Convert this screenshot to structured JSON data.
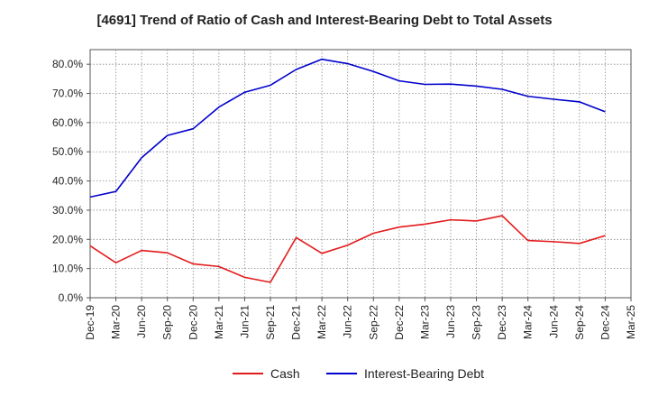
{
  "chart_data": {
    "type": "line",
    "title": "[4691]  Trend of Ratio of Cash and Interest-Bearing Debt to Total Assets",
    "xlabel": "",
    "ylabel": "",
    "x": [
      "Dec-19",
      "Mar-20",
      "Jun-20",
      "Sep-20",
      "Dec-20",
      "Mar-21",
      "Jun-21",
      "Sep-21",
      "Dec-21",
      "Mar-22",
      "Jun-22",
      "Sep-22",
      "Dec-22",
      "Mar-23",
      "Jun-23",
      "Sep-23",
      "Dec-23",
      "Mar-24",
      "Jun-24",
      "Sep-24",
      "Dec-24"
    ],
    "x_ticks": [
      "Dec-19",
      "Mar-20",
      "Jun-20",
      "Sep-20",
      "Dec-20",
      "Mar-21",
      "Jun-21",
      "Sep-21",
      "Dec-21",
      "Mar-22",
      "Jun-22",
      "Sep-22",
      "Dec-22",
      "Mar-23",
      "Jun-23",
      "Sep-23",
      "Dec-23",
      "Mar-24",
      "Jun-24",
      "Sep-24",
      "Dec-24",
      "Mar-25"
    ],
    "ylim": [
      0,
      85
    ],
    "y_ticks": [
      0,
      10,
      20,
      30,
      40,
      50,
      60,
      70,
      80
    ],
    "y_tick_labels": [
      "0.0%",
      "10.0%",
      "20.0%",
      "30.0%",
      "40.0%",
      "50.0%",
      "60.0%",
      "70.0%",
      "80.0%"
    ],
    "grid": true,
    "legend_position": "bottom",
    "series": [
      {
        "name": "Cash",
        "color": "#e31a1c",
        "values": [
          17.8,
          12.0,
          16.2,
          15.4,
          11.6,
          10.7,
          7.0,
          5.3,
          20.6,
          15.2,
          18.0,
          22.1,
          24.2,
          25.2,
          26.7,
          26.3,
          28.1,
          19.6,
          19.2,
          18.6,
          21.3
        ]
      },
      {
        "name": "Interest-Bearing Debt",
        "color": "#0000cc",
        "values": [
          34.5,
          36.4,
          48.0,
          55.6,
          57.9,
          65.3,
          70.4,
          72.8,
          78.2,
          81.7,
          80.2,
          77.5,
          74.3,
          73.1,
          73.2,
          72.5,
          71.4,
          69.0,
          68.0,
          67.1,
          63.7
        ]
      }
    ]
  }
}
